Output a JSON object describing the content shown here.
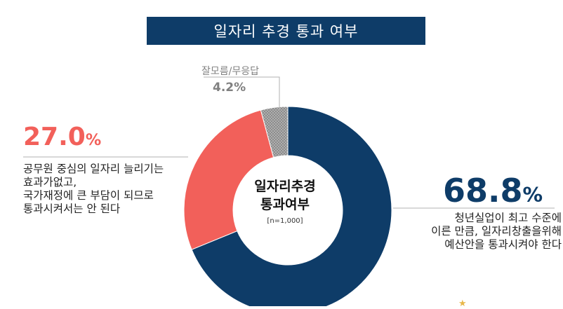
{
  "title": "일자리 추경 통과 여부",
  "chart_data": {
    "type": "pie",
    "subtype": "donut",
    "center_title_lines": [
      "일자리추경",
      "통과여부"
    ],
    "center_sample": "[n=1,000]",
    "slices": [
      {
        "key": "pass",
        "value": 68.8,
        "value_text": "68.8",
        "unit": "%",
        "color": "#0e3c68",
        "description_lines": [
          "청년실업이 최고 수준에",
          "이른 만큼, 일자리창출을위해",
          "예산안을 통과시켜야 한다"
        ]
      },
      {
        "key": "oppose",
        "value": 27.0,
        "value_text": "27.0",
        "unit": "%",
        "color": "#f2605a",
        "description_lines": [
          "공무원 중심의 일자리 늘리기는",
          "효과가없고,",
          "국가재정에 큰 부담이 되므로",
          "통과시켜서는 안 된다"
        ]
      },
      {
        "key": "dontknow",
        "value": 4.2,
        "value_text": "4.2",
        "unit": "%",
        "color": "#8c8c8c",
        "pattern": "dotted",
        "label": "잘모름/무응답"
      }
    ]
  }
}
